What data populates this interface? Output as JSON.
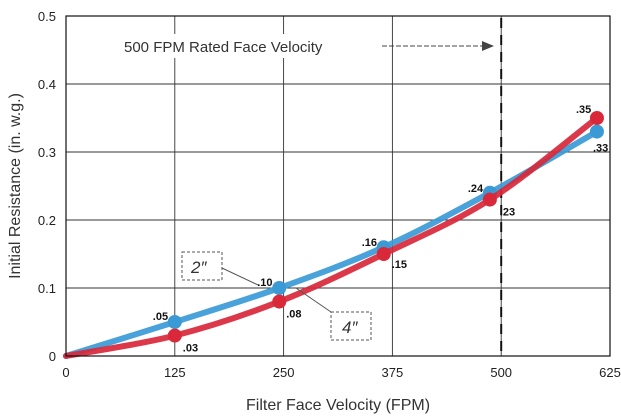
{
  "chart_data": {
    "type": "line",
    "xlabel": "Filter Face Velocity (FPM)",
    "ylabel": "Initial Resistance (in. w.g.)",
    "xlim": [
      0,
      625
    ],
    "ylim": [
      0,
      0.5
    ],
    "x_ticks": [
      "0",
      "125",
      "250",
      "375",
      "500",
      "625"
    ],
    "y_ticks": [
      "0",
      "0.1",
      "0.2",
      "0.3",
      "0.4",
      "0.5"
    ],
    "grid": true,
    "series": [
      {
        "name": "2″",
        "color": "#3a9ad6",
        "points": [
          {
            "x": 0,
            "y": 0
          },
          {
            "x": 125,
            "y": 0.05,
            "label": ".05"
          },
          {
            "x": 245,
            "y": 0.1,
            "label": ".10"
          },
          {
            "x": 365,
            "y": 0.16,
            "label": ".16"
          },
          {
            "x": 487,
            "y": 0.24,
            "label": ".24"
          },
          {
            "x": 610,
            "y": 0.33,
            "label": ".33"
          }
        ]
      },
      {
        "name": "4″",
        "color": "#d8283a",
        "points": [
          {
            "x": 0,
            "y": 0
          },
          {
            "x": 125,
            "y": 0.03,
            "label": ".03"
          },
          {
            "x": 245,
            "y": 0.08,
            "label": ".08"
          },
          {
            "x": 365,
            "y": 0.15,
            "label": ".15"
          },
          {
            "x": 487,
            "y": 0.23,
            "label": ".23"
          },
          {
            "x": 610,
            "y": 0.35,
            "label": ".35"
          }
        ]
      }
    ],
    "reference_line": {
      "x": 500,
      "label": "500 FPM Rated Face Velocity"
    }
  }
}
